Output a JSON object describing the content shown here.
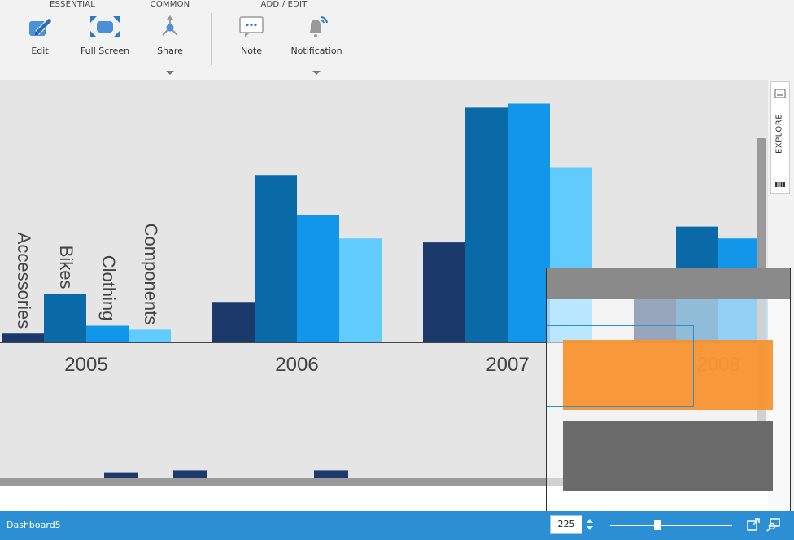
{
  "ribbon": {
    "groups": {
      "essential": "ESSENTIAL",
      "common": "COMMON",
      "add_edit": "ADD / EDIT"
    },
    "buttons": {
      "edit": "Edit",
      "full_screen": "Full Screen",
      "share": "Share",
      "note": "Note",
      "notification": "Notification"
    }
  },
  "explore_tab": {
    "label": "EXPLORE"
  },
  "chart_data": {
    "type": "bar",
    "categories": [
      "2005",
      "2006",
      "2007",
      "2008"
    ],
    "series": [
      {
        "name": "Accessories",
        "values": [
          2,
          10,
          25,
          12
        ],
        "color": "#1b3a6b"
      },
      {
        "name": "Bikes",
        "values": [
          12,
          42,
          59,
          29
        ],
        "color": "#0a6aa8"
      },
      {
        "name": "Clothing",
        "values": [
          4,
          32,
          60,
          26
        ],
        "color": "#1296ea"
      },
      {
        "name": "Components",
        "values": [
          3,
          26,
          44,
          16
        ],
        "color": "#62cbfe"
      }
    ],
    "ylim": [
      0,
      64
    ]
  },
  "overview_values": [
    2,
    3,
    3
  ],
  "statusbar": {
    "dashboard_tab": "Dashboard5",
    "zoom_value": "225"
  },
  "colors": {
    "accent": "#2d8fd3",
    "highlight": "#f7902a"
  }
}
